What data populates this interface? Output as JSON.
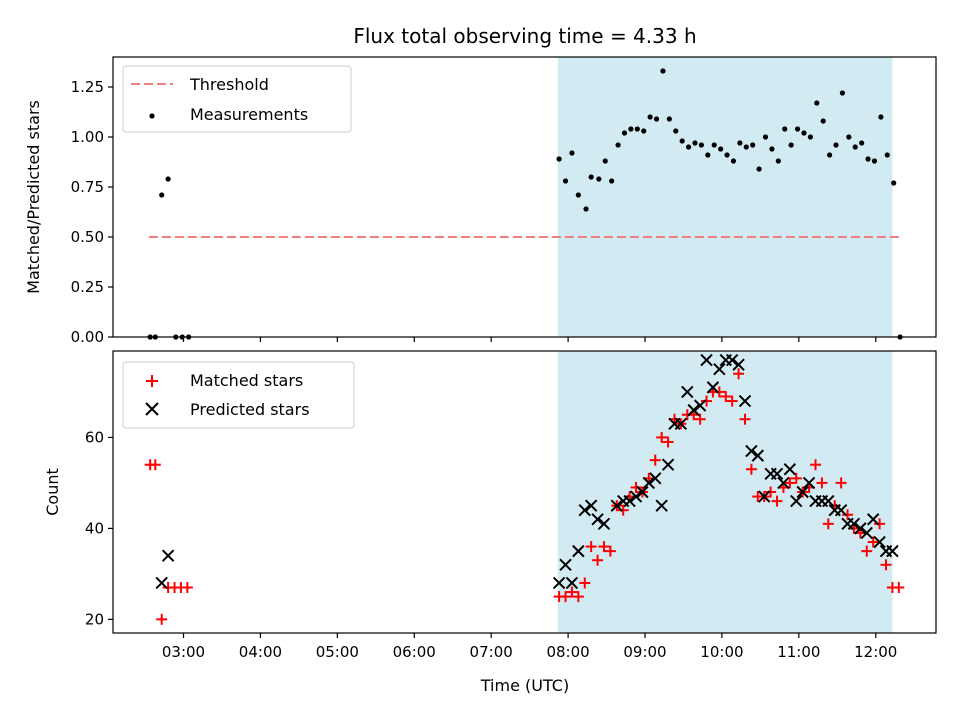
{
  "chart_data": [
    {
      "type": "scatter",
      "title": "Flux total observing time = 4.33 h",
      "xlabel": "",
      "ylabel": "Matched/Predicted stars",
      "ylim": [
        0,
        1.4
      ],
      "yticks": [
        "0.00",
        "0.25",
        "0.50",
        "0.75",
        "1.00",
        "1.25"
      ],
      "ytick_values": [
        0,
        0.25,
        0.5,
        0.75,
        1.0,
        1.25
      ],
      "xlim": [
        "02:05",
        "12:47"
      ],
      "shaded_region": {
        "x_start": "07:52",
        "x_end": "12:13",
        "color": "#add8e6"
      },
      "threshold": {
        "name": "Threshold",
        "y": 0.5,
        "x_start": "02:33",
        "x_end": "12:20",
        "color": "#f08080"
      },
      "legend": {
        "placement": "top-left",
        "entries": [
          "Threshold",
          "Measurements"
        ]
      },
      "series": [
        {
          "name": "Measurements",
          "color": "#000000",
          "marker": "dot",
          "points": [
            [
              "02:34",
              0.0
            ],
            [
              "02:38",
              0.0
            ],
            [
              "02:43",
              0.71
            ],
            [
              "02:48",
              0.79
            ],
            [
              "02:54",
              0.0
            ],
            [
              "02:59",
              0.0
            ],
            [
              "03:04",
              0.0
            ],
            [
              "07:53",
              0.89
            ],
            [
              "07:58",
              0.78
            ],
            [
              "08:03",
              0.92
            ],
            [
              "08:08",
              0.71
            ],
            [
              "08:14",
              0.64
            ],
            [
              "08:18",
              0.8
            ],
            [
              "08:24",
              0.79
            ],
            [
              "08:29",
              0.88
            ],
            [
              "08:34",
              0.78
            ],
            [
              "08:39",
              0.96
            ],
            [
              "08:44",
              1.02
            ],
            [
              "08:49",
              1.04
            ],
            [
              "08:54",
              1.04
            ],
            [
              "08:59",
              1.03
            ],
            [
              "09:04",
              1.1
            ],
            [
              "09:09",
              1.09
            ],
            [
              "09:14",
              1.33
            ],
            [
              "09:19",
              1.09
            ],
            [
              "09:24",
              1.03
            ],
            [
              "09:29",
              0.98
            ],
            [
              "09:34",
              0.95
            ],
            [
              "09:39",
              0.97
            ],
            [
              "09:44",
              0.96
            ],
            [
              "09:49",
              0.91
            ],
            [
              "09:54",
              0.96
            ],
            [
              "09:59",
              0.94
            ],
            [
              "10:04",
              0.91
            ],
            [
              "10:09",
              0.88
            ],
            [
              "10:14",
              0.97
            ],
            [
              "10:19",
              0.95
            ],
            [
              "10:24",
              0.96
            ],
            [
              "10:29",
              0.84
            ],
            [
              "10:34",
              1.0
            ],
            [
              "10:39",
              0.94
            ],
            [
              "10:44",
              0.88
            ],
            [
              "10:49",
              1.04
            ],
            [
              "10:54",
              0.96
            ],
            [
              "10:59",
              1.04
            ],
            [
              "11:04",
              1.02
            ],
            [
              "11:09",
              1.0
            ],
            [
              "11:14",
              1.17
            ],
            [
              "11:19",
              1.08
            ],
            [
              "11:24",
              0.91
            ],
            [
              "11:29",
              0.96
            ],
            [
              "11:34",
              1.22
            ],
            [
              "11:39",
              1.0
            ],
            [
              "11:44",
              0.95
            ],
            [
              "11:49",
              0.97
            ],
            [
              "11:54",
              0.89
            ],
            [
              "11:59",
              0.88
            ],
            [
              "12:04",
              1.1
            ],
            [
              "12:09",
              0.91
            ],
            [
              "12:14",
              0.77
            ],
            [
              "12:19",
              0.0
            ]
          ]
        }
      ]
    },
    {
      "type": "scatter",
      "title": "",
      "xlabel": "Time (UTC)",
      "ylabel": "Count",
      "ylim": [
        17,
        79
      ],
      "yticks": [
        "20",
        "40",
        "60"
      ],
      "ytick_values": [
        20,
        40,
        60
      ],
      "xlim": [
        "02:05",
        "12:47"
      ],
      "xticks": [
        "03:00",
        "04:00",
        "05:00",
        "06:00",
        "07:00",
        "08:00",
        "09:00",
        "10:00",
        "11:00",
        "12:00"
      ],
      "shaded_region": {
        "x_start": "07:52",
        "x_end": "12:13",
        "color": "#add8e6"
      },
      "legend": {
        "placement": "top-left",
        "entries": [
          "Matched stars",
          "Predicted stars"
        ]
      },
      "series": [
        {
          "name": "Matched stars",
          "color": "#ff0000",
          "marker": "plus",
          "points": [
            [
              "02:34",
              54
            ],
            [
              "02:38",
              54
            ],
            [
              "02:43",
              20
            ],
            [
              "02:48",
              27
            ],
            [
              "02:53",
              27
            ],
            [
              "02:58",
              27
            ],
            [
              "03:03",
              27
            ],
            [
              "07:53",
              25
            ],
            [
              "07:58",
              25
            ],
            [
              "08:03",
              26
            ],
            [
              "08:08",
              25
            ],
            [
              "08:13",
              28
            ],
            [
              "08:18",
              36
            ],
            [
              "08:23",
              33
            ],
            [
              "08:28",
              36
            ],
            [
              "08:33",
              35
            ],
            [
              "08:38",
              45
            ],
            [
              "08:43",
              44
            ],
            [
              "08:48",
              47
            ],
            [
              "08:53",
              49
            ],
            [
              "08:58",
              48
            ],
            [
              "09:03",
              51
            ],
            [
              "09:08",
              55
            ],
            [
              "09:13",
              60
            ],
            [
              "09:18",
              59
            ],
            [
              "09:23",
              64
            ],
            [
              "09:28",
              63
            ],
            [
              "09:33",
              65
            ],
            [
              "09:38",
              65
            ],
            [
              "09:43",
              64
            ],
            [
              "09:48",
              68
            ],
            [
              "09:53",
              70
            ],
            [
              "09:58",
              70
            ],
            [
              "10:03",
              69
            ],
            [
              "10:08",
              68
            ],
            [
              "10:13",
              74
            ],
            [
              "10:18",
              64
            ],
            [
              "10:23",
              53
            ],
            [
              "10:28",
              47
            ],
            [
              "10:33",
              47
            ],
            [
              "10:38",
              48
            ],
            [
              "10:43",
              46
            ],
            [
              "10:48",
              49
            ],
            [
              "10:53",
              50
            ],
            [
              "10:58",
              51
            ],
            [
              "11:03",
              48
            ],
            [
              "11:08",
              49
            ],
            [
              "11:13",
              54
            ],
            [
              "11:18",
              50
            ],
            [
              "11:23",
              41
            ],
            [
              "11:28",
              45
            ],
            [
              "11:33",
              50
            ],
            [
              "11:38",
              43
            ],
            [
              "11:43",
              40
            ],
            [
              "11:48",
              39
            ],
            [
              "11:53",
              35
            ],
            [
              "11:58",
              37
            ],
            [
              "12:03",
              41
            ],
            [
              "12:08",
              32
            ],
            [
              "12:13",
              27
            ],
            [
              "12:18",
              27
            ]
          ]
        },
        {
          "name": "Predicted stars",
          "color": "#000000",
          "marker": "x",
          "points": [
            [
              "02:48",
              34
            ],
            [
              "02:43",
              28
            ],
            [
              "07:53",
              28
            ],
            [
              "07:58",
              32
            ],
            [
              "08:03",
              28
            ],
            [
              "08:08",
              35
            ],
            [
              "08:13",
              44
            ],
            [
              "08:18",
              45
            ],
            [
              "08:23",
              42
            ],
            [
              "08:28",
              41
            ],
            [
              "08:38",
              45
            ],
            [
              "08:43",
              46
            ],
            [
              "08:48",
              46
            ],
            [
              "08:53",
              47
            ],
            [
              "08:58",
              48
            ],
            [
              "09:03",
              50
            ],
            [
              "09:08",
              51
            ],
            [
              "09:13",
              45
            ],
            [
              "09:18",
              54
            ],
            [
              "09:23",
              63
            ],
            [
              "09:28",
              63
            ],
            [
              "09:33",
              70
            ],
            [
              "09:38",
              66
            ],
            [
              "09:43",
              67
            ],
            [
              "09:48",
              77
            ],
            [
              "09:53",
              71
            ],
            [
              "09:58",
              75
            ],
            [
              "10:03",
              77
            ],
            [
              "10:08",
              77
            ],
            [
              "10:13",
              76
            ],
            [
              "10:18",
              68
            ],
            [
              "10:23",
              57
            ],
            [
              "10:28",
              56
            ],
            [
              "10:33",
              47
            ],
            [
              "10:38",
              52
            ],
            [
              "10:43",
              52
            ],
            [
              "10:48",
              50
            ],
            [
              "10:53",
              53
            ],
            [
              "10:58",
              46
            ],
            [
              "11:03",
              48
            ],
            [
              "11:08",
              50
            ],
            [
              "11:13",
              46
            ],
            [
              "11:18",
              46
            ],
            [
              "11:23",
              46
            ],
            [
              "11:28",
              44
            ],
            [
              "11:33",
              44
            ],
            [
              "11:38",
              41
            ],
            [
              "11:43",
              41
            ],
            [
              "11:48",
              40
            ],
            [
              "11:53",
              39
            ],
            [
              "11:58",
              42
            ],
            [
              "12:03",
              37
            ],
            [
              "12:08",
              35
            ],
            [
              "12:13",
              35
            ]
          ]
        }
      ]
    }
  ]
}
